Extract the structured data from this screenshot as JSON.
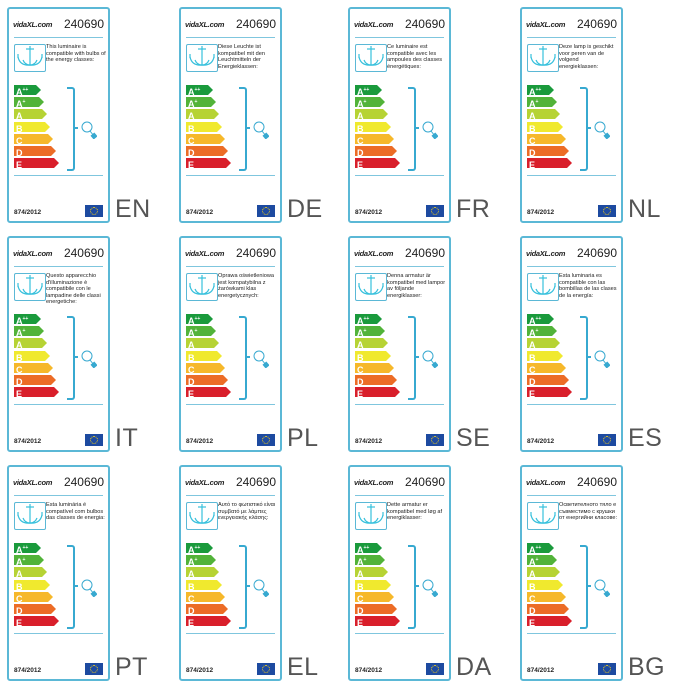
{
  "brand": "vidaXL.com",
  "product_number": "240690",
  "regulation": "874/2012",
  "classes": [
    {
      "main": "A",
      "sup": "++",
      "color": "#1a9a3c",
      "width": 22
    },
    {
      "main": "A",
      "sup": "+",
      "color": "#52b339",
      "width": 25
    },
    {
      "main": "A",
      "sup": "",
      "color": "#b6d334",
      "width": 28
    },
    {
      "main": "B",
      "sup": "",
      "color": "#f0e92e",
      "width": 31
    },
    {
      "main": "C",
      "sup": "",
      "color": "#f6b82a",
      "width": 34
    },
    {
      "main": "D",
      "sup": "",
      "color": "#ec6c26",
      "width": 37
    },
    {
      "main": "E",
      "sup": "",
      "color": "#d91f2b",
      "width": 40
    }
  ],
  "labels": [
    {
      "lang": "EN",
      "text": "This luminaire is compatible with bulbs of the energy classes:"
    },
    {
      "lang": "DE",
      "text": "Diese Leuchte ist kompatibel mit den Leuchtmitteln der Energieklassen:"
    },
    {
      "lang": "FR",
      "text": "Ce luminaire est compatible avec les ampoules des classes énergétiques:"
    },
    {
      "lang": "NL",
      "text": "Deze lamp is geschikt voor peren van de volgend energieklassen:"
    },
    {
      "lang": "IT",
      "text": "Questo apparecchio d'illuminazione è compatibile con le lampadine delle classi energetiche:"
    },
    {
      "lang": "PL",
      "text": "Oprawa oświetleniowa jest kompatybilna z żarówkami klas energetycznych:"
    },
    {
      "lang": "SE",
      "text": "Denna armatur är kompatibel med lampor av följande energiklasser:"
    },
    {
      "lang": "ES",
      "text": "Esta luminaria es compatible con las bombillas de las clases de la energía:"
    },
    {
      "lang": "PT",
      "text": "Esta luminária é compatível com bulbos das classes de energia:"
    },
    {
      "lang": "EL",
      "text": "Αυτό το φωτιστικό είναι συμβατό με λάμπες ενεργειακής κλάσης:"
    },
    {
      "lang": "DA",
      "text": "Dette armatur er kompatibel med løg af energiklasser:"
    },
    {
      "lang": "BG",
      "text": "Осветителното тяло е съвместимо с крушки от енергийни класове:"
    }
  ],
  "colors": {
    "border": "#5bb8d6",
    "bracket": "#37a9d0",
    "eu_flag": "#1d4aa0"
  }
}
